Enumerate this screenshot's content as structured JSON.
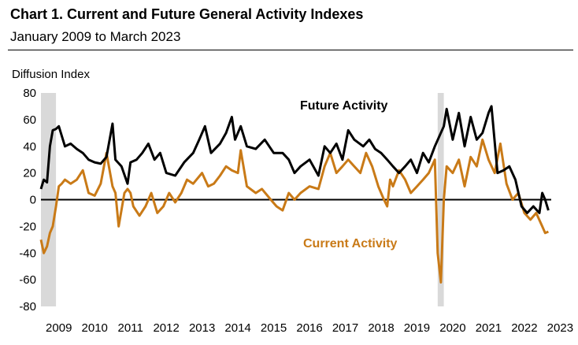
{
  "chart_data": {
    "type": "line",
    "title": "Chart 1. Current and Future General Activity Indexes",
    "subtitle": "January 2009 to March 2023",
    "ylabel": "Diffusion Index",
    "ylim": [
      -80,
      80
    ],
    "y_ticks": [
      -80,
      -60,
      -40,
      -20,
      0,
      20,
      40,
      60,
      80
    ],
    "x_range": [
      2009.0,
      2023.25
    ],
    "x_ticks": [
      "2009",
      "2010",
      "2011",
      "2012",
      "2013",
      "2014",
      "2015",
      "2016",
      "2017",
      "2018",
      "2019",
      "2020",
      "2021",
      "2022",
      "2023"
    ],
    "recessions": [
      {
        "start": 2009.0,
        "end": 2009.42
      },
      {
        "start": 2020.08,
        "end": 2020.25
      }
    ],
    "grid": "horizontal",
    "zero_line": true,
    "series": [
      {
        "name": "Future Activity",
        "color": "#000000",
        "x": [
          2009.0,
          2009.08,
          2009.17,
          2009.25,
          2009.33,
          2009.42,
          2009.5,
          2009.67,
          2009.83,
          2010.0,
          2010.17,
          2010.33,
          2010.5,
          2010.67,
          2010.83,
          2011.0,
          2011.08,
          2011.25,
          2011.42,
          2011.5,
          2011.67,
          2011.83,
          2012.0,
          2012.17,
          2012.33,
          2012.5,
          2012.75,
          2013.0,
          2013.25,
          2013.42,
          2013.58,
          2013.75,
          2014.0,
          2014.17,
          2014.33,
          2014.42,
          2014.58,
          2014.75,
          2015.0,
          2015.25,
          2015.5,
          2015.75,
          2015.92,
          2016.08,
          2016.25,
          2016.5,
          2016.75,
          2016.92,
          2017.08,
          2017.25,
          2017.42,
          2017.58,
          2017.75,
          2018.0,
          2018.17,
          2018.33,
          2018.5,
          2018.67,
          2018.83,
          2019.0,
          2019.17,
          2019.33,
          2019.5,
          2019.67,
          2019.83,
          2020.0,
          2020.25,
          2020.33,
          2020.5,
          2020.67,
          2020.83,
          2021.0,
          2021.17,
          2021.33,
          2021.5,
          2021.58,
          2021.75,
          2021.92,
          2022.08,
          2022.25,
          2022.42,
          2022.58,
          2022.75,
          2022.92,
          2023.0,
          2023.08,
          2023.17
        ],
        "values": [
          8,
          15,
          13,
          40,
          52,
          53,
          55,
          40,
          42,
          38,
          35,
          30,
          28,
          27,
          32,
          57,
          30,
          25,
          12,
          28,
          30,
          35,
          42,
          30,
          35,
          20,
          18,
          28,
          35,
          45,
          55,
          35,
          42,
          50,
          62,
          45,
          55,
          40,
          38,
          45,
          35,
          35,
          30,
          20,
          25,
          30,
          18,
          40,
          35,
          42,
          30,
          52,
          45,
          40,
          45,
          38,
          35,
          30,
          25,
          20,
          25,
          30,
          20,
          35,
          28,
          40,
          55,
          68,
          45,
          65,
          40,
          62,
          45,
          50,
          65,
          70,
          20,
          22,
          25,
          15,
          -5,
          -10,
          -5,
          -10,
          5,
          0,
          -8
        ]
      },
      {
        "name": "Current Activity",
        "color": "#c97a17",
        "x": [
          2009.0,
          2009.08,
          2009.17,
          2009.25,
          2009.33,
          2009.42,
          2009.5,
          2009.58,
          2009.67,
          2009.83,
          2010.0,
          2010.17,
          2010.33,
          2010.5,
          2010.67,
          2010.83,
          2011.0,
          2011.08,
          2011.17,
          2011.33,
          2011.42,
          2011.5,
          2011.58,
          2011.75,
          2011.92,
          2012.08,
          2012.25,
          2012.42,
          2012.58,
          2012.75,
          2012.92,
          2013.08,
          2013.25,
          2013.5,
          2013.67,
          2013.83,
          2014.0,
          2014.17,
          2014.33,
          2014.5,
          2014.58,
          2014.75,
          2015.0,
          2015.17,
          2015.42,
          2015.58,
          2015.75,
          2015.92,
          2016.08,
          2016.25,
          2016.5,
          2016.75,
          2016.92,
          2017.08,
          2017.25,
          2017.42,
          2017.58,
          2017.75,
          2017.92,
          2018.08,
          2018.25,
          2018.42,
          2018.58,
          2018.67,
          2018.75,
          2018.83,
          2019.0,
          2019.17,
          2019.33,
          2019.5,
          2019.67,
          2019.83,
          2020.0,
          2020.08,
          2020.17,
          2020.25,
          2020.33,
          2020.5,
          2020.67,
          2020.83,
          2021.0,
          2021.17,
          2021.33,
          2021.5,
          2021.67,
          2021.83,
          2022.0,
          2022.17,
          2022.33,
          2022.5,
          2022.67,
          2022.83,
          2023.0,
          2023.08,
          2023.17
        ],
        "values": [
          -30,
          -40,
          -35,
          -25,
          -20,
          -5,
          10,
          12,
          15,
          12,
          15,
          22,
          5,
          3,
          12,
          35,
          10,
          5,
          -20,
          5,
          8,
          5,
          -5,
          -12,
          -5,
          5,
          -10,
          -5,
          5,
          -2,
          5,
          15,
          12,
          20,
          10,
          12,
          18,
          25,
          22,
          20,
          37,
          10,
          5,
          8,
          0,
          -5,
          -8,
          5,
          0,
          5,
          10,
          8,
          25,
          35,
          20,
          25,
          30,
          25,
          20,
          35,
          25,
          10,
          0,
          -5,
          15,
          10,
          22,
          15,
          5,
          10,
          15,
          20,
          30,
          -40,
          -62,
          0,
          25,
          20,
          30,
          10,
          32,
          25,
          45,
          30,
          20,
          42,
          12,
          0,
          5,
          -10,
          -15,
          -10,
          -20,
          -25,
          -24
        ]
      }
    ],
    "annotations": [
      {
        "text": "Future Activity",
        "series": "Future Activity"
      },
      {
        "text": "Current Activity",
        "series": "Current Activity"
      }
    ]
  }
}
